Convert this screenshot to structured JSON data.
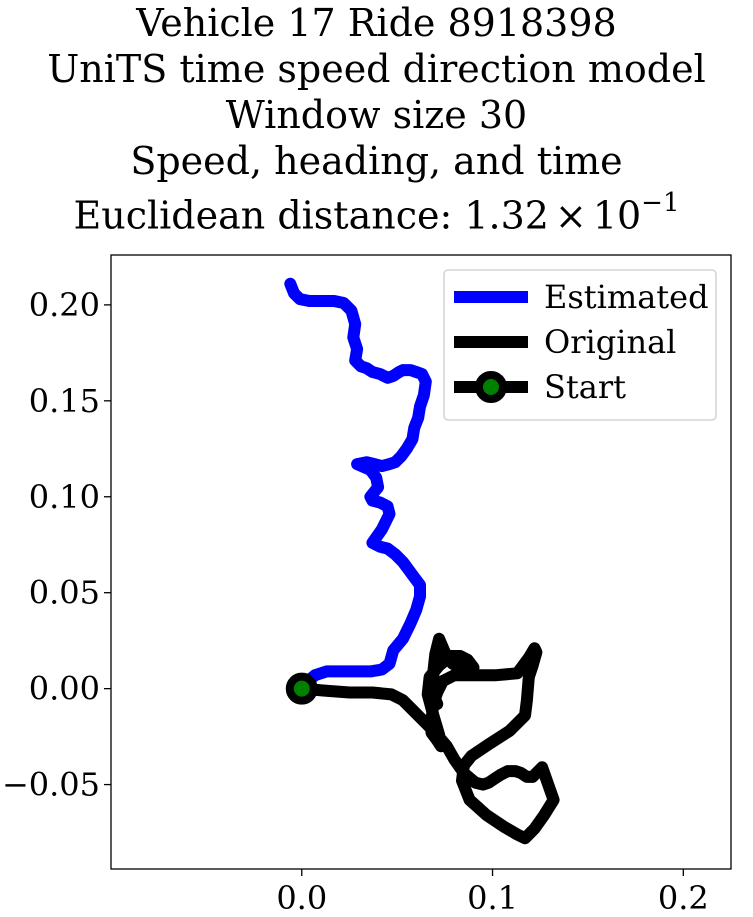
{
  "title_lines": [
    "Vehicle 17 Ride 8918398",
    "UniTS time speed direction model",
    "Window size 30",
    "Speed, heading, and time"
  ],
  "distance_label": {
    "prefix": "Euclidean distance: 1.32",
    "times": "×",
    "base": "10",
    "exponent": "−1"
  },
  "chart_data": {
    "type": "line",
    "xlim": [
      -0.1,
      0.225
    ],
    "ylim": [
      -0.094,
      0.226
    ],
    "x_ticks": [
      0.0,
      0.1,
      0.2
    ],
    "x_tick_labels": [
      "0.0",
      "0.1",
      "0.2"
    ],
    "y_ticks": [
      -0.05,
      0.0,
      0.05,
      0.1,
      0.15,
      0.2
    ],
    "y_tick_labels": [
      "−0.05",
      "0.00",
      "0.05",
      "0.10",
      "0.15",
      "0.20"
    ],
    "grid": false,
    "legend_position": "top-right",
    "series": [
      {
        "name": "Estimated",
        "color": "#0000ff",
        "x": [
          -0.006,
          -0.004,
          -0.001,
          0.004,
          0.01,
          0.017,
          0.022,
          0.026,
          0.028,
          0.027,
          0.029,
          0.028,
          0.031,
          0.034,
          0.037,
          0.041,
          0.045,
          0.048,
          0.051,
          0.053,
          0.057,
          0.06,
          0.063,
          0.065,
          0.064,
          0.062,
          0.061,
          0.059,
          0.058,
          0.055,
          0.052,
          0.049,
          0.046,
          0.042,
          0.038,
          0.034,
          0.029,
          0.036,
          0.039,
          0.04,
          0.036,
          0.037,
          0.041,
          0.045,
          0.046,
          0.044,
          0.042,
          0.037,
          0.041,
          0.045,
          0.049,
          0.053,
          0.056,
          0.059,
          0.062,
          0.062,
          0.06,
          0.057,
          0.053,
          0.048,
          0.046,
          0.042,
          0.036,
          0.028,
          0.02,
          0.013,
          0.007,
          0.002,
          0.0
        ],
        "y": [
          0.211,
          0.206,
          0.203,
          0.202,
          0.202,
          0.202,
          0.201,
          0.197,
          0.19,
          0.183,
          0.177,
          0.171,
          0.168,
          0.167,
          0.165,
          0.164,
          0.162,
          0.163,
          0.165,
          0.166,
          0.166,
          0.165,
          0.164,
          0.16,
          0.153,
          0.147,
          0.141,
          0.136,
          0.13,
          0.125,
          0.121,
          0.118,
          0.117,
          0.116,
          0.117,
          0.118,
          0.117,
          0.114,
          0.11,
          0.105,
          0.1,
          0.098,
          0.097,
          0.095,
          0.091,
          0.087,
          0.083,
          0.076,
          0.074,
          0.073,
          0.07,
          0.066,
          0.062,
          0.058,
          0.054,
          0.048,
          0.041,
          0.034,
          0.026,
          0.02,
          0.013,
          0.01,
          0.009,
          0.009,
          0.009,
          0.009,
          0.007,
          0.003,
          0.0
        ]
      },
      {
        "name": "Original",
        "color": "#000000",
        "x": [
          0.0,
          0.012,
          0.025,
          0.037,
          0.047,
          0.053,
          0.058,
          0.064,
          0.07,
          0.076,
          0.08,
          0.085,
          0.091,
          0.095,
          0.098,
          0.101,
          0.104,
          0.108,
          0.112,
          0.115,
          0.118,
          0.121,
          0.126,
          0.132,
          0.127,
          0.122,
          0.117,
          0.113,
          0.106,
          0.097,
          0.088,
          0.084,
          0.085,
          0.089,
          0.098,
          0.109,
          0.117,
          0.118,
          0.119,
          0.121,
          0.123,
          0.122,
          0.119,
          0.113,
          0.102,
          0.091,
          0.08,
          0.074,
          0.071,
          0.069,
          0.068,
          0.068,
          0.071,
          0.073,
          0.072,
          0.069,
          0.066,
          0.067,
          0.072,
          0.078,
          0.083,
          0.087,
          0.09,
          0.085,
          0.079,
          0.075,
          0.072,
          0.07,
          0.069,
          0.069,
          0.071
        ],
        "y": [
          0.0,
          -0.001,
          -0.002,
          -0.002,
          -0.003,
          -0.006,
          -0.011,
          -0.017,
          -0.023,
          -0.03,
          -0.037,
          -0.044,
          -0.049,
          -0.05,
          -0.049,
          -0.047,
          -0.045,
          -0.043,
          -0.043,
          -0.044,
          -0.046,
          -0.046,
          -0.041,
          -0.058,
          -0.066,
          -0.073,
          -0.078,
          -0.076,
          -0.072,
          -0.066,
          -0.058,
          -0.048,
          -0.04,
          -0.035,
          -0.029,
          -0.022,
          -0.014,
          -0.006,
          0.006,
          0.012,
          0.019,
          0.021,
          0.016,
          0.008,
          0.007,
          0.007,
          0.007,
          0.004,
          -0.002,
          -0.008,
          -0.016,
          -0.023,
          -0.027,
          -0.03,
          -0.024,
          -0.014,
          -0.003,
          0.006,
          0.012,
          0.017,
          0.017,
          0.015,
          0.011,
          0.01,
          0.013,
          0.019,
          0.026,
          0.018,
          0.009,
          -0.003,
          -0.008
        ]
      },
      {
        "name": "Start",
        "marker": "circle",
        "edge_color": "#000000",
        "face_color": "#008000",
        "x": [
          0.0
        ],
        "y": [
          0.0
        ]
      }
    ]
  }
}
